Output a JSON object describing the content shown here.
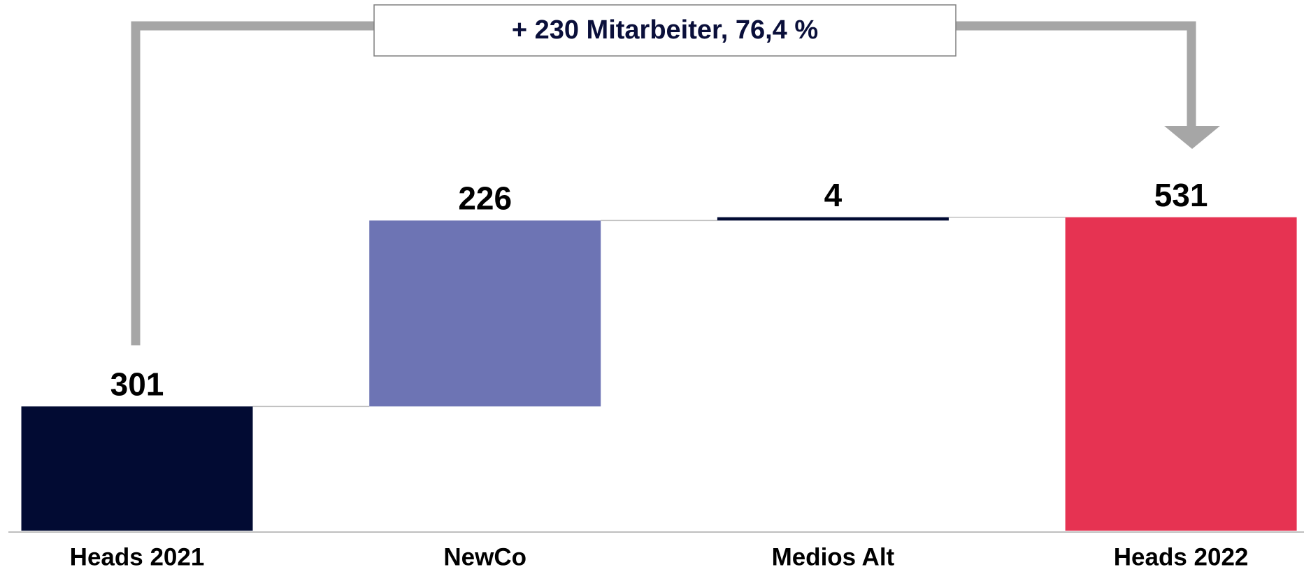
{
  "chart_data": {
    "type": "waterfall",
    "annotation": "+ 230 Mitarbeiter, 76,4 %",
    "categories": [
      "Heads 2021",
      "NewCo",
      "Medios Alt",
      "Heads 2022"
    ],
    "values": [
      301,
      226,
      4,
      531
    ],
    "totals": [
      true,
      false,
      false,
      true
    ],
    "colors": [
      "#020b33",
      "#6d74b4",
      "#020b33",
      "#e63352"
    ],
    "ylim": [
      150,
      535
    ]
  }
}
